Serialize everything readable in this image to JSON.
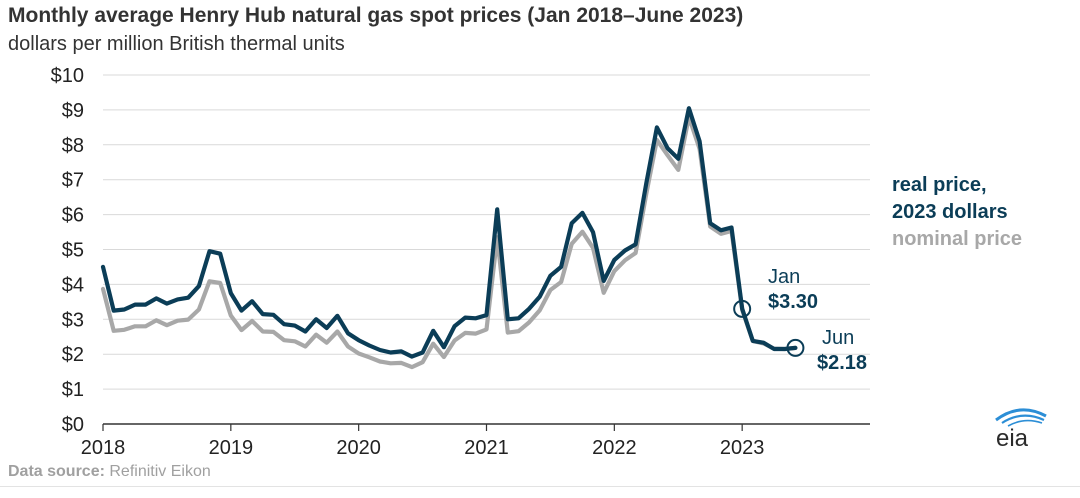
{
  "title": "Monthly average Henry Hub natural gas spot prices (Jan 2018–June 2023)",
  "subtitle": "dollars per million British thermal units",
  "legend": {
    "real_line1": "real price,",
    "real_line2": "2023 dollars",
    "nominal": "nominal price"
  },
  "source": {
    "label": "Data source:",
    "text": " Refinitiv Eikon"
  },
  "logo_text": "eia",
  "annotations": {
    "jan_label": "Jan",
    "jan_value": "$3.30",
    "jun_label": "Jun",
    "jun_value": "$2.18"
  },
  "colors": {
    "real": "#0b3d57",
    "nominal": "#a8a8a8",
    "grid": "#d9d9d9",
    "axis": "#333333"
  },
  "chart_data": {
    "type": "line",
    "title": "Monthly average Henry Hub natural gas spot prices (Jan 2018–June 2023)",
    "subtitle": "dollars per million British thermal units",
    "xlabel": "",
    "ylabel": "",
    "ylim": [
      0,
      10
    ],
    "xlim": [
      "2018-01",
      "2023-12"
    ],
    "x_ticks": [
      "2018",
      "2019",
      "2020",
      "2021",
      "2022",
      "2023"
    ],
    "y_ticks": [
      "$0",
      "$1",
      "$2",
      "$3",
      "$4",
      "$5",
      "$6",
      "$7",
      "$8",
      "$9",
      "$10"
    ],
    "grid": true,
    "legend_position": "right",
    "x": [
      "2018-01",
      "2018-02",
      "2018-03",
      "2018-04",
      "2018-05",
      "2018-06",
      "2018-07",
      "2018-08",
      "2018-09",
      "2018-10",
      "2018-11",
      "2018-12",
      "2019-01",
      "2019-02",
      "2019-03",
      "2019-04",
      "2019-05",
      "2019-06",
      "2019-07",
      "2019-08",
      "2019-09",
      "2019-10",
      "2019-11",
      "2019-12",
      "2020-01",
      "2020-02",
      "2020-03",
      "2020-04",
      "2020-05",
      "2020-06",
      "2020-07",
      "2020-08",
      "2020-09",
      "2020-10",
      "2020-11",
      "2020-12",
      "2021-01",
      "2021-02",
      "2021-03",
      "2021-04",
      "2021-05",
      "2021-06",
      "2021-07",
      "2021-08",
      "2021-09",
      "2021-10",
      "2021-11",
      "2021-12",
      "2022-01",
      "2022-02",
      "2022-03",
      "2022-04",
      "2022-05",
      "2022-06",
      "2022-07",
      "2022-08",
      "2022-09",
      "2022-10",
      "2022-11",
      "2022-12",
      "2023-01",
      "2023-02",
      "2023-03",
      "2023-04",
      "2023-05",
      "2023-06"
    ],
    "series": [
      {
        "name": "real price, 2023 dollars",
        "values": [
          4.5,
          3.25,
          3.28,
          3.42,
          3.42,
          3.6,
          3.45,
          3.57,
          3.62,
          3.95,
          4.95,
          4.88,
          3.75,
          3.25,
          3.52,
          3.15,
          3.13,
          2.86,
          2.82,
          2.65,
          3.0,
          2.75,
          3.1,
          2.6,
          2.4,
          2.25,
          2.12,
          2.05,
          2.08,
          1.93,
          2.05,
          2.67,
          2.2,
          2.8,
          3.05,
          3.03,
          3.12,
          6.15,
          3.0,
          3.03,
          3.3,
          3.65,
          4.25,
          4.5,
          5.75,
          6.05,
          5.5,
          4.1,
          4.7,
          4.97,
          5.15,
          6.9,
          8.5,
          7.9,
          7.6,
          9.05,
          8.1,
          5.75,
          5.55,
          5.63,
          3.3,
          2.38,
          2.33,
          2.15,
          2.15,
          2.18
        ]
      },
      {
        "name": "nominal price",
        "values": [
          3.87,
          2.67,
          2.7,
          2.8,
          2.8,
          2.97,
          2.83,
          2.96,
          2.99,
          3.28,
          4.09,
          4.04,
          3.11,
          2.69,
          2.95,
          2.65,
          2.64,
          2.4,
          2.37,
          2.22,
          2.56,
          2.33,
          2.65,
          2.22,
          2.02,
          1.91,
          1.79,
          1.74,
          1.75,
          1.63,
          1.77,
          2.3,
          1.92,
          2.39,
          2.61,
          2.59,
          2.71,
          5.35,
          2.62,
          2.66,
          2.91,
          3.26,
          3.84,
          4.07,
          5.16,
          5.51,
          5.05,
          3.76,
          4.38,
          4.69,
          4.9,
          6.6,
          8.14,
          7.7,
          7.28,
          8.8,
          7.88,
          5.66,
          5.45,
          5.53,
          3.27,
          2.38,
          2.31,
          2.16,
          2.15,
          2.18
        ]
      }
    ]
  }
}
